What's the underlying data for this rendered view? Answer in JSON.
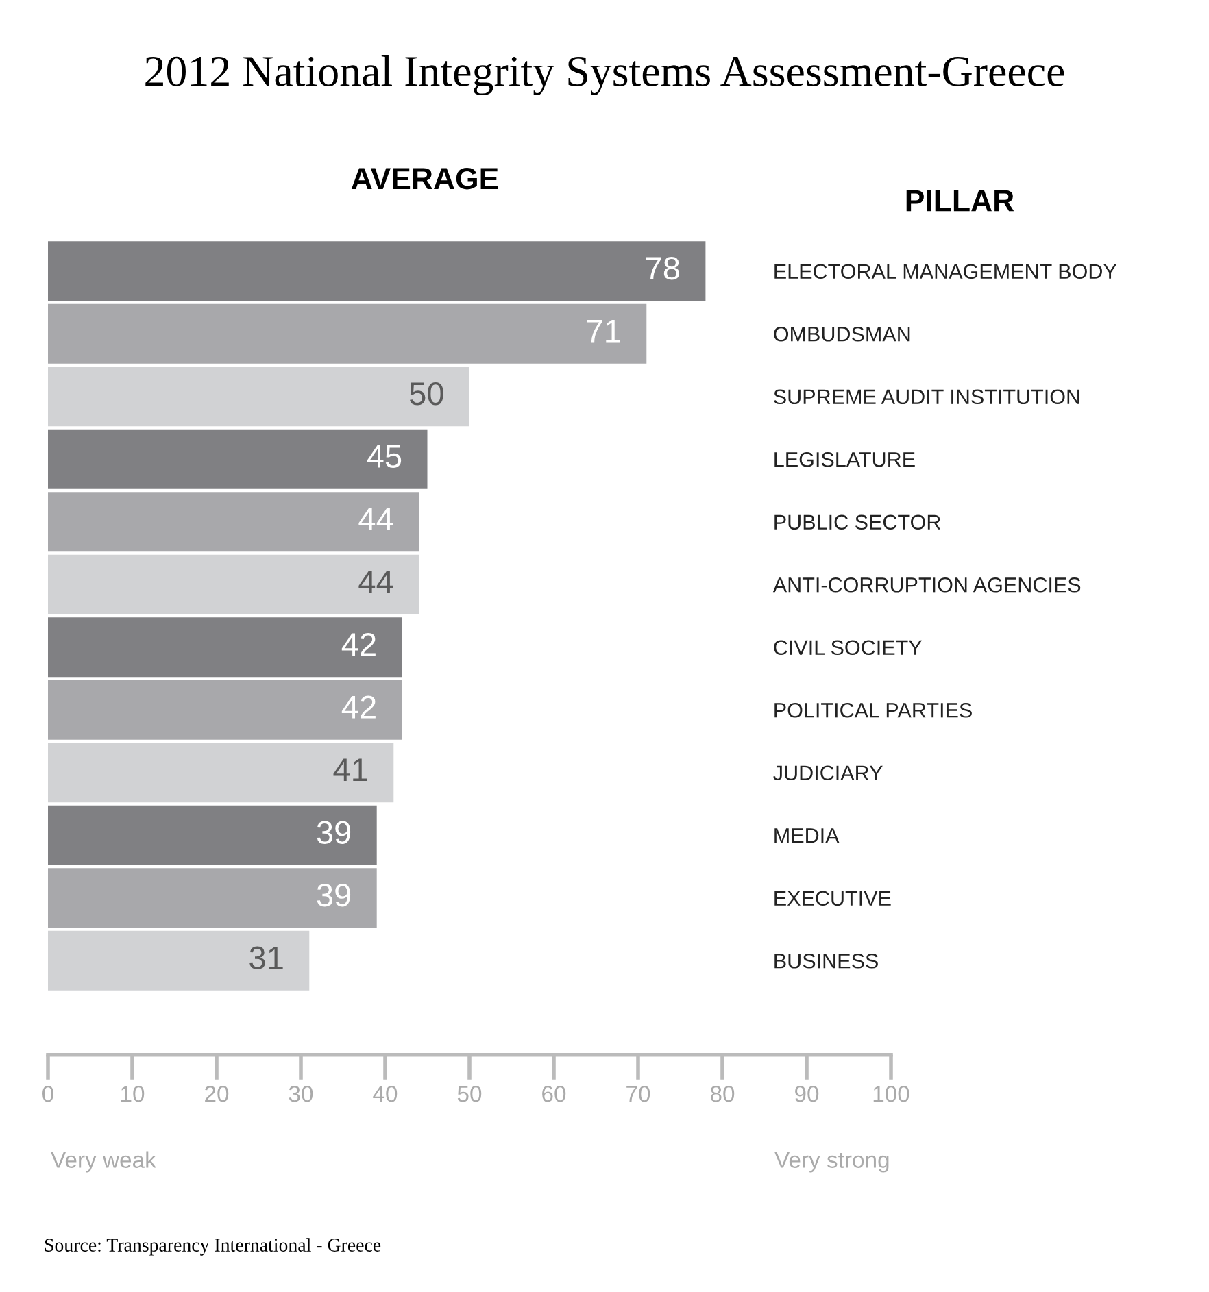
{
  "chart_data": {
    "type": "bar",
    "orientation": "horizontal",
    "title": "2012 National Integrity Systems Assessment-Greece",
    "xlabel": "AVERAGE",
    "ylabel": "PILLAR",
    "categories": [
      "ELECTORAL MANAGEMENT BODY",
      "OMBUDSMAN",
      "SUPREME AUDIT INSTITUTION",
      "LEGISLATURE",
      "PUBLIC SECTOR",
      "ANTI-CORRUPTION AGENCIES",
      "CIVIL SOCIETY",
      "POLITICAL PARTIES",
      "JUDICIARY",
      "MEDIA",
      "EXECUTIVE",
      "BUSINESS"
    ],
    "values": [
      78,
      71,
      50,
      45,
      44,
      44,
      42,
      42,
      41,
      39,
      39,
      31
    ],
    "colors": [
      "#808083",
      "#a8a8ab",
      "#d1d2d4",
      "#808083",
      "#a8a8ab",
      "#d1d2d4",
      "#808083",
      "#a8a8ab",
      "#d1d2d4",
      "#808083",
      "#a8a8ab",
      "#d1d2d4"
    ],
    "data_labels": true,
    "xlim": [
      0,
      100
    ],
    "xticks": [
      0,
      10,
      20,
      30,
      40,
      50,
      60,
      70,
      80,
      90,
      100
    ],
    "grid": false,
    "legend": false,
    "annotations": [
      "Very weak",
      "Very strong",
      "Source: Transparency International - Greece"
    ]
  }
}
